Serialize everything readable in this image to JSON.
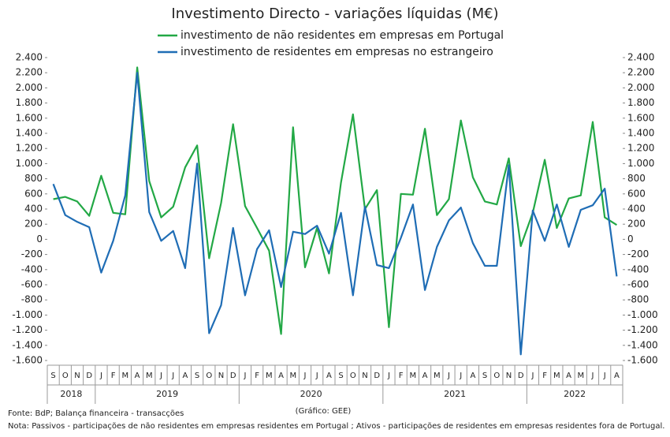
{
  "chart_data": {
    "type": "line",
    "title": "Investimento Directo - variações líquidas (M€)",
    "categories": [
      "S",
      "O",
      "N",
      "D",
      "J",
      "F",
      "M",
      "A",
      "M",
      "J",
      "J",
      "A",
      "S",
      "O",
      "N",
      "D",
      "J",
      "F",
      "M",
      "A",
      "M",
      "J",
      "J",
      "A",
      "S",
      "O",
      "N",
      "D",
      "J",
      "F",
      "M",
      "A",
      "M",
      "J",
      "J",
      "A",
      "S",
      "O",
      "N",
      "D",
      "J",
      "F",
      "M",
      "A",
      "M",
      "J",
      "J",
      "A"
    ],
    "years": [
      "2018",
      "2019",
      "2020",
      "2021",
      "2022"
    ],
    "series": [
      {
        "name": "investimento de não residentes em empresas em Portugal",
        "color": "#22a845",
        "values": [
          530,
          560,
          500,
          310,
          840,
          350,
          330,
          2270,
          770,
          290,
          430,
          950,
          1240,
          -250,
          480,
          1520,
          440,
          150,
          -150,
          -1250,
          1480,
          -370,
          150,
          -450,
          750,
          1650,
          400,
          650,
          -1160,
          600,
          590,
          1460,
          320,
          530,
          1570,
          820,
          500,
          460,
          1070,
          -90,
          350,
          1050,
          150,
          540,
          580,
          1550,
          290,
          190
        ]
      },
      {
        "name": "investimento de residentes em empresas no estrangeiro",
        "color": "#1f6db5",
        "values": [
          730,
          320,
          230,
          160,
          -440,
          -20,
          580,
          2200,
          360,
          -20,
          110,
          -380,
          1000,
          -1240,
          -870,
          150,
          -740,
          -130,
          120,
          -630,
          100,
          70,
          180,
          -190,
          350,
          -740,
          430,
          -340,
          -380,
          20,
          460,
          -670,
          -100,
          250,
          420,
          -50,
          -350,
          -350,
          980,
          -1520,
          380,
          -20,
          460,
          -100,
          390,
          450,
          670,
          -490
        ]
      }
    ],
    "ylim": [
      -1600,
      2400
    ],
    "yticks": [
      {
        "value": -1600,
        "label": "-1.600"
      },
      {
        "value": -1400,
        "label": "-1.400"
      },
      {
        "value": -1200,
        "label": "-1.200"
      },
      {
        "value": -1000,
        "label": "-1.000"
      },
      -800,
      -600,
      -400,
      -200,
      0,
      200,
      400,
      600,
      800,
      {
        "value": 1000,
        "label": "1.000"
      },
      {
        "value": 1200,
        "label": "1.200"
      },
      {
        "value": 1400,
        "label": "1.400"
      },
      {
        "value": 1600,
        "label": "1.600"
      },
      {
        "value": 1800,
        "label": "1.800"
      },
      {
        "value": 2000,
        "label": "2.000"
      },
      {
        "value": 2200,
        "label": "2.200"
      },
      {
        "value": 2400,
        "label": "2.400"
      }
    ],
    "y2lim": [
      -1600,
      2400
    ],
    "y2ticks": [
      {
        "value": -1600,
        "label": "-1.600"
      },
      {
        "value": -1400,
        "label": "-1.400"
      },
      {
        "value": -1200,
        "label": "-1.200"
      },
      {
        "value": -1000,
        "label": "-1.000"
      },
      -800,
      -600,
      -400,
      -200,
      0,
      200,
      400,
      600,
      800,
      {
        "value": 1000,
        "label": "1.000"
      },
      {
        "value": 1200,
        "label": "1.200"
      },
      {
        "value": 1400,
        "label": "1.400"
      },
      {
        "value": 1600,
        "label": "1.600"
      },
      {
        "value": 1800,
        "label": "1.800"
      },
      {
        "value": 2000,
        "label": "2.000"
      },
      {
        "value": 2200,
        "label": "2.200"
      },
      {
        "value": 2400,
        "label": "2.400"
      }
    ],
    "credit": "(Gráfico: GEE)",
    "source": "Fonte: BdP; Balança financeira - transacções",
    "note": "Nota: Passivos - participações de não residentes em empresas residentes em Portugal ; Ativos - participações de residentes em empresas residentes fora de Portugal."
  }
}
